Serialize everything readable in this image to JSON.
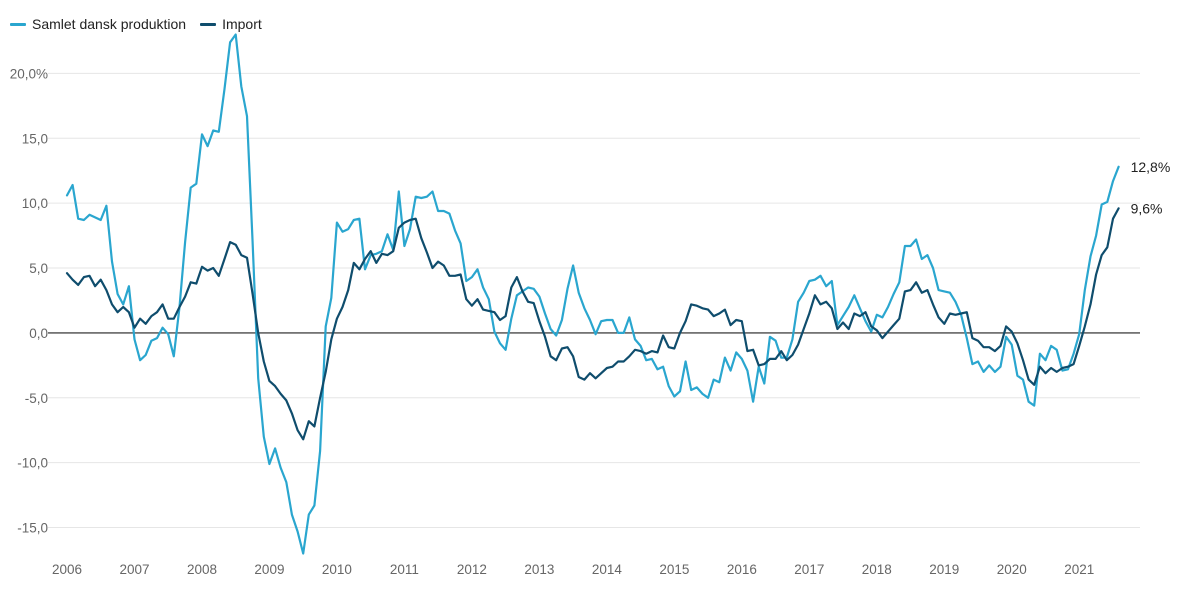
{
  "legend": {
    "series1_label": "Samlet dansk produktion",
    "series2_label": "Import"
  },
  "colors": {
    "series1": "#2aa6cf",
    "series2": "#0f4d6d",
    "grid": "#e6e6e6",
    "zero": "#222222"
  },
  "chart_data": {
    "type": "line",
    "title": "",
    "xlabel": "",
    "ylabel": "",
    "x_start": 2006.0,
    "x_step": 0.08333,
    "xlim": [
      2006.0,
      2021.9
    ],
    "ylim": [
      -17.5,
      23.5
    ],
    "y_ticks": [
      -15,
      -10,
      -5,
      0,
      5,
      10,
      15,
      20
    ],
    "y_tick_labels": [
      "-15,0",
      "-10,0",
      "-5,0",
      "0,0",
      "5,0",
      "10,0",
      "15,0",
      "20,0%"
    ],
    "x_ticks": [
      2006,
      2007,
      2008,
      2009,
      2010,
      2011,
      2012,
      2013,
      2014,
      2015,
      2016,
      2017,
      2018,
      2019,
      2020,
      2021
    ],
    "x_tick_labels": [
      "2006",
      "2007",
      "2008",
      "2009",
      "2010",
      "2011",
      "2012",
      "2013",
      "2014",
      "2015",
      "2016",
      "2017",
      "2018",
      "2019",
      "2020",
      "2021"
    ],
    "grid": true,
    "legend_position": "top-left",
    "end_labels": [
      "12,8%",
      "9,6%"
    ],
    "series": [
      {
        "name": "Samlet dansk produktion",
        "values": [
          10.6,
          11.4,
          8.8,
          8.7,
          9.1,
          8.9,
          8.7,
          9.8,
          5.5,
          3.0,
          2.2,
          3.6,
          -0.5,
          -2.1,
          -1.7,
          -0.6,
          -0.4,
          0.4,
          -0.1,
          -1.8,
          2.0,
          7.0,
          11.2,
          11.5,
          15.3,
          14.4,
          15.6,
          15.5,
          18.8,
          22.4,
          23.0,
          19.0,
          16.7,
          7.0,
          -3.5,
          -8.0,
          -10.1,
          -8.9,
          -10.4,
          -11.5,
          -14.0,
          -15.3,
          -17.0,
          -14.0,
          -13.3,
          -9.1,
          0.5,
          2.7,
          8.5,
          7.8,
          8.0,
          8.7,
          8.8,
          4.9,
          6.0,
          6.1,
          6.3,
          7.6,
          6.4,
          10.9,
          6.7,
          8.0,
          10.5,
          10.4,
          10.5,
          10.9,
          9.4,
          9.4,
          9.2,
          7.9,
          6.9,
          4.0,
          4.3,
          4.9,
          3.5,
          2.6,
          0.1,
          -0.8,
          -1.3,
          1.1,
          2.9,
          3.2,
          3.5,
          3.4,
          2.8,
          1.5,
          0.3,
          -0.2,
          1.0,
          3.4,
          5.2,
          3.1,
          1.9,
          1.0,
          -0.1,
          0.9,
          1.0,
          1.0,
          0.0,
          0.0,
          1.2,
          -0.5,
          -1.0,
          -2.1,
          -2.0,
          -2.8,
          -2.6,
          -4.1,
          -4.9,
          -4.5,
          -2.2,
          -4.4,
          -4.2,
          -4.7,
          -5.0,
          -3.6,
          -3.8,
          -1.9,
          -2.9,
          -1.5,
          -2.0,
          -2.9,
          -5.3,
          -2.6,
          -3.9,
          -0.3,
          -0.6,
          -1.9,
          -1.9,
          -0.5,
          2.4,
          3.1,
          4.0,
          4.1,
          4.4,
          3.6,
          4.0,
          0.6,
          1.3,
          2.0,
          2.9,
          1.9,
          0.9,
          0.1,
          1.4,
          1.2,
          2.0,
          3.0,
          3.9,
          6.7,
          6.7,
          7.2,
          5.7,
          6.0,
          5.0,
          3.3,
          3.2,
          3.1,
          2.4,
          1.4,
          -0.4,
          -2.4,
          -2.2,
          -3.0,
          -2.5,
          -3.0,
          -2.6,
          -0.3,
          -0.9,
          -3.3,
          -3.6,
          -5.3,
          -5.6,
          -1.6,
          -2.1,
          -1.0,
          -1.3,
          -2.9,
          -2.8,
          -1.6,
          -0.1,
          3.3,
          5.9,
          7.5,
          9.9,
          10.1,
          11.7,
          12.8
        ]
      },
      {
        "name": "Import",
        "values": [
          4.6,
          4.1,
          3.7,
          4.3,
          4.4,
          3.6,
          4.1,
          3.3,
          2.2,
          1.6,
          2.0,
          1.6,
          0.4,
          1.1,
          0.7,
          1.3,
          1.6,
          2.2,
          1.1,
          1.1,
          2.0,
          2.8,
          3.9,
          3.8,
          5.1,
          4.8,
          5.0,
          4.4,
          5.7,
          7.0,
          6.8,
          6.0,
          5.8,
          3.0,
          0.0,
          -2.2,
          -3.7,
          -4.1,
          -4.7,
          -5.2,
          -6.2,
          -7.5,
          -8.2,
          -6.8,
          -7.2,
          -5.0,
          -3.0,
          -0.5,
          1.1,
          2.0,
          3.3,
          5.4,
          4.9,
          5.7,
          6.3,
          5.4,
          6.1,
          6.0,
          6.3,
          8.1,
          8.5,
          8.7,
          8.8,
          7.3,
          6.2,
          5.0,
          5.5,
          5.2,
          4.4,
          4.4,
          4.5,
          2.6,
          2.1,
          2.6,
          1.8,
          1.7,
          1.6,
          1.0,
          1.3,
          3.5,
          4.3,
          3.2,
          2.4,
          2.3,
          0.9,
          -0.3,
          -1.8,
          -2.1,
          -1.2,
          -1.1,
          -1.8,
          -3.4,
          -3.6,
          -3.1,
          -3.5,
          -3.1,
          -2.7,
          -2.6,
          -2.2,
          -2.2,
          -1.8,
          -1.3,
          -1.4,
          -1.6,
          -1.4,
          -1.5,
          -0.2,
          -1.1,
          -1.2,
          0.0,
          0.9,
          2.2,
          2.1,
          1.9,
          1.8,
          1.3,
          1.5,
          1.8,
          0.6,
          1.0,
          0.9,
          -1.4,
          -1.3,
          -2.5,
          -2.4,
          -2.0,
          -2.0,
          -1.4,
          -2.1,
          -1.7,
          -0.9,
          0.3,
          1.5,
          2.9,
          2.2,
          2.4,
          1.9,
          0.3,
          0.8,
          0.3,
          1.5,
          1.3,
          1.6,
          0.5,
          0.2,
          -0.4,
          0.1,
          0.6,
          1.1,
          3.2,
          3.3,
          3.9,
          3.1,
          3.3,
          2.2,
          1.2,
          0.7,
          1.5,
          1.4,
          1.5,
          1.6,
          -0.4,
          -0.6,
          -1.1,
          -1.1,
          -1.4,
          -1.0,
          0.5,
          0.1,
          -0.8,
          -2.1,
          -3.6,
          -4.0,
          -2.6,
          -3.1,
          -2.7,
          -3.0,
          -2.7,
          -2.6,
          -2.4,
          -1.0,
          0.5,
          2.2,
          4.5,
          6.0,
          6.6,
          8.8,
          9.6
        ]
      }
    ]
  }
}
